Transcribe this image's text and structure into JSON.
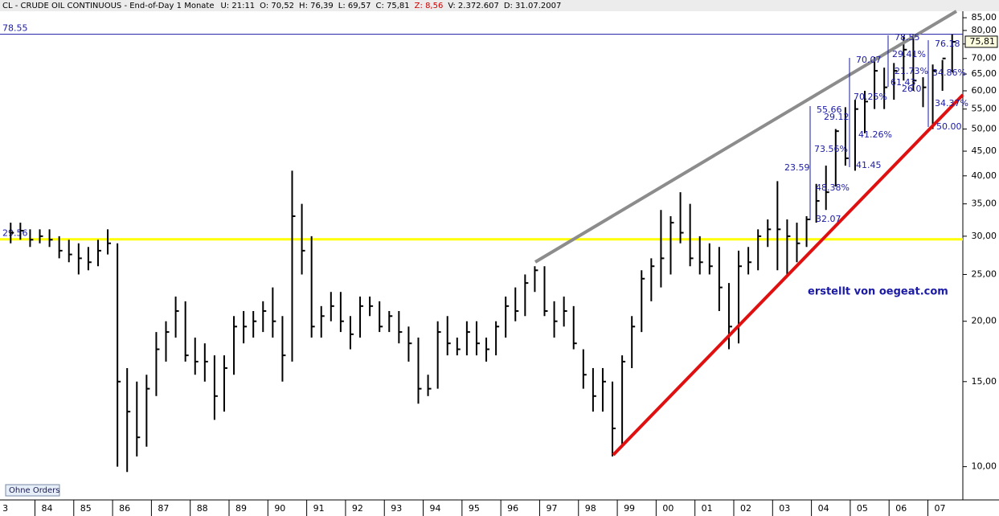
{
  "header": {
    "parts": [
      {
        "text": "CL - CRUDE OIL CONTINUOUS - End-of-Day 1 Monate",
        "color": "#000000"
      },
      {
        "text": "U: 21:11",
        "color": "#000000"
      },
      {
        "text": "O: 70,52",
        "color": "#000000"
      },
      {
        "text": "H: 76,39",
        "color": "#000000"
      },
      {
        "text": "L: 69,57",
        "color": "#000000"
      },
      {
        "text": "C: 75,81",
        "color": "#000000"
      },
      {
        "text": "Z: 8,56",
        "color": "#d00000"
      },
      {
        "text": "V: 2.372.607",
        "color": "#000000"
      },
      {
        "text": "D: 31.07.2007",
        "color": "#000000"
      }
    ]
  },
  "button": "Ohne Orders",
  "credit": "erstellt von oegeat.com",
  "annotations": [
    "55.66",
    "29.12",
    "73.56%",
    "23.59",
    "48.38%",
    "32.07",
    "70.07",
    "70.25%",
    "41.26%",
    "41.45",
    "78.55",
    "29.41%",
    "21.73%",
    "61.43",
    "26.0",
    "76.18",
    "34.86%",
    "34.37%",
    "50.00"
  ],
  "chart_data": {
    "type": "hlc",
    "log_y": true,
    "color": "#000000",
    "x": [
      1983.375,
      1983.625,
      1983.875,
      1984.125,
      1984.375,
      1984.625,
      1984.875,
      1985.125,
      1985.375,
      1985.625,
      1985.875,
      1986.125,
      1986.375,
      1986.625,
      1986.875,
      1987.125,
      1987.375,
      1987.625,
      1987.875,
      1988.125,
      1988.375,
      1988.625,
      1988.875,
      1989.125,
      1989.375,
      1989.625,
      1989.875,
      1990.125,
      1990.375,
      1990.625,
      1990.875,
      1991.125,
      1991.375,
      1991.625,
      1991.875,
      1992.125,
      1992.375,
      1992.625,
      1992.875,
      1993.125,
      1993.375,
      1993.625,
      1993.875,
      1994.125,
      1994.375,
      1994.625,
      1994.875,
      1995.125,
      1995.375,
      1995.625,
      1995.875,
      1996.125,
      1996.375,
      1996.625,
      1996.875,
      1997.125,
      1997.375,
      1997.625,
      1997.875,
      1998.125,
      1998.375,
      1998.625,
      1998.875,
      1999.125,
      1999.375,
      1999.625,
      1999.875,
      2000.125,
      2000.375,
      2000.625,
      2000.875,
      2001.125,
      2001.375,
      2001.625,
      2001.875,
      2002.125,
      2002.375,
      2002.625,
      2002.875,
      2003.125,
      2003.375,
      2003.625,
      2003.875,
      2004.125,
      2004.375,
      2004.625,
      2004.875,
      2005.125,
      2005.375,
      2005.625,
      2005.875,
      2006.125,
      2006.375,
      2006.625,
      2006.875,
      2007.125,
      2007.375,
      2007.625
    ],
    "high": [
      32,
      32,
      31,
      31,
      31,
      30,
      29.5,
      29,
      28.5,
      29.5,
      31,
      29,
      16,
      15,
      15.5,
      19,
      20,
      22.5,
      22,
      18.5,
      18,
      17,
      17,
      20.5,
      21,
      21,
      22,
      23.5,
      20.5,
      41,
      35,
      30,
      21.5,
      23,
      23,
      20.5,
      22.5,
      22.5,
      22,
      21,
      21,
      19.5,
      18.5,
      15.5,
      20,
      20.5,
      18.5,
      20,
      20,
      18.5,
      20,
      22.5,
      23.5,
      25,
      26,
      26,
      22,
      22.5,
      21.5,
      17.5,
      16,
      16,
      15,
      17,
      20.5,
      25.5,
      27,
      34,
      33,
      37,
      35,
      30,
      29,
      28.5,
      24,
      28,
      28.5,
      31,
      32.5,
      39,
      32.5,
      32,
      33,
      38.5,
      42,
      50,
      55.5,
      57.5,
      60,
      70.5,
      67,
      68.5,
      78,
      78.4,
      64,
      68,
      69.5,
      78.5
    ],
    "low": [
      29,
      29.5,
      28.5,
      29,
      28.5,
      27,
      26.5,
      25,
      25.5,
      26,
      27.5,
      10,
      9.75,
      10.5,
      11,
      14,
      16.5,
      18.5,
      16.5,
      15.5,
      15,
      12.5,
      13,
      15.5,
      18,
      18.5,
      19,
      18.5,
      15,
      16.5,
      25,
      18.5,
      18.5,
      20,
      19,
      17.5,
      18.5,
      20.5,
      19,
      19,
      18,
      16.5,
      13.5,
      14,
      14.5,
      17,
      17,
      17,
      17,
      16.5,
      17,
      18.5,
      20,
      20.5,
      23,
      20.5,
      18.5,
      19.5,
      17.5,
      14.5,
      13,
      13,
      10.5,
      11,
      16,
      19,
      22,
      23.5,
      25,
      29,
      26,
      25,
      25,
      21,
      17.5,
      18,
      25,
      25.5,
      28.5,
      25.5,
      25,
      26.5,
      28.5,
      32,
      34,
      38,
      42,
      41,
      49,
      55,
      55,
      57.5,
      63,
      60,
      55.5,
      50,
      60,
      65.5
    ],
    "close": [
      30.5,
      30.8,
      29.5,
      30,
      29.5,
      28,
      27.5,
      27,
      26.5,
      28,
      29,
      15,
      13,
      11.5,
      14.5,
      17.5,
      19,
      21,
      17,
      16.5,
      16.5,
      14,
      16,
      19.5,
      19.5,
      20,
      21,
      20,
      17,
      33,
      28,
      19.5,
      20.5,
      21.5,
      20,
      18.8,
      21.5,
      21.5,
      19.5,
      20.5,
      19,
      18,
      14.5,
      14.5,
      19,
      18,
      17.5,
      19,
      18,
      17.5,
      19.5,
      21.5,
      21,
      24,
      25.5,
      21,
      20,
      21,
      18,
      15.5,
      14,
      15,
      12,
      16.5,
      19.5,
      24.5,
      26,
      27,
      32,
      30.5,
      27,
      26.5,
      26,
      23.5,
      19.5,
      26,
      26.5,
      30,
      31,
      31,
      30,
      29,
      32.5,
      35.5,
      37,
      49.5,
      43.5,
      55,
      57,
      66,
      61,
      66,
      73,
      63,
      61,
      66,
      70,
      75.8
    ],
    "xlim": [
      1983.1,
      2007.9
    ],
    "xticks": [
      {
        "value": 1983,
        "label": "3"
      },
      {
        "value": 1984,
        "label": "84"
      },
      {
        "value": 1985,
        "label": "85"
      },
      {
        "value": 1986,
        "label": "86"
      },
      {
        "value": 1987,
        "label": "87"
      },
      {
        "value": 1988,
        "label": "88"
      },
      {
        "value": 1989,
        "label": "89"
      },
      {
        "value": 1990,
        "label": "90"
      },
      {
        "value": 1991,
        "label": "91"
      },
      {
        "value": 1992,
        "label": "92"
      },
      {
        "value": 1993,
        "label": "93"
      },
      {
        "value": 1994,
        "label": "94"
      },
      {
        "value": 1995,
        "label": "95"
      },
      {
        "value": 1996,
        "label": "96"
      },
      {
        "value": 1997,
        "label": "97"
      },
      {
        "value": 1998,
        "label": "98"
      },
      {
        "value": 1999,
        "label": "99"
      },
      {
        "value": 2000,
        "label": "00"
      },
      {
        "value": 2001,
        "label": "01"
      },
      {
        "value": 2002,
        "label": "02"
      },
      {
        "value": 2003,
        "label": "03"
      },
      {
        "value": 2004,
        "label": "04"
      },
      {
        "value": 2005,
        "label": "05"
      },
      {
        "value": 2006,
        "label": "06"
      },
      {
        "value": 2007,
        "label": "07"
      }
    ],
    "ylim": [
      9.5,
      87
    ],
    "yticks": [
      {
        "value": 10,
        "label": "10,00"
      },
      {
        "value": 15,
        "label": "15,00"
      },
      {
        "value": 20,
        "label": "20,00"
      },
      {
        "value": 25,
        "label": "25,00"
      },
      {
        "value": 30,
        "label": "30,00"
      },
      {
        "value": 35,
        "label": "35,00"
      },
      {
        "value": 40,
        "label": "40,00"
      },
      {
        "value": 45,
        "label": "45,00"
      },
      {
        "value": 50,
        "label": "50,00"
      },
      {
        "value": 55,
        "label": "55,00"
      },
      {
        "value": 60,
        "label": "60,00"
      },
      {
        "value": 65,
        "label": "65,00"
      },
      {
        "value": 70,
        "label": "70,00"
      },
      {
        "value": 75,
        "label": "75,00"
      },
      {
        "value": 80,
        "label": "80,00"
      },
      {
        "value": 85,
        "label": "85,00"
      }
    ],
    "horizontal_lines": [
      {
        "value": 78.55,
        "label": "78.55",
        "color": "#1a1aa6"
      },
      {
        "value": 29.56,
        "label": "29.56",
        "color": "#ffff00"
      }
    ],
    "last_value": {
      "value": 75.81,
      "label": "75,81"
    }
  }
}
